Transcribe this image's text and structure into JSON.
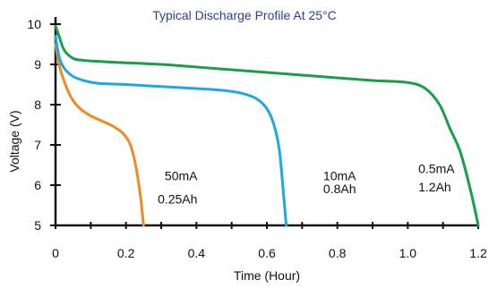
{
  "chart_data": {
    "type": "line",
    "title": "Typical Discharge Profile At 25°C",
    "xlabel": "Time (Hour)",
    "ylabel": "Voltage (V)",
    "xlim": [
      0,
      1.2
    ],
    "ylim": [
      5,
      10
    ],
    "x_ticks": [
      0,
      0.1,
      0.2,
      0.3,
      0.4,
      0.5,
      0.6,
      0.7,
      0.8,
      0.9,
      1.0,
      1.1,
      1.2
    ],
    "x_tick_labels": [
      {
        "x": 0,
        "label": "0"
      },
      {
        "x": 0.2,
        "label": "0.2"
      },
      {
        "x": 0.4,
        "label": "0.4"
      },
      {
        "x": 0.6,
        "label": "0.6"
      },
      {
        "x": 0.8,
        "label": "0.8"
      },
      {
        "x": 1.0,
        "label": "1.0"
      },
      {
        "x": 1.2,
        "label": "1.2"
      }
    ],
    "y_ticks": [
      5,
      6,
      7,
      8,
      9,
      10
    ],
    "y_tick_labels": [
      {
        "y": 5,
        "label": "5"
      },
      {
        "y": 6,
        "label": "6"
      },
      {
        "y": 7,
        "label": "7"
      },
      {
        "y": 8,
        "label": "8"
      },
      {
        "y": 9,
        "label": "9"
      },
      {
        "y": 10,
        "label": "10"
      }
    ],
    "grid": false,
    "series": [
      {
        "color": "#f08a24",
        "points": [
          [
            0,
            9.5
          ],
          [
            0.01,
            9.0
          ],
          [
            0.02,
            8.7
          ],
          [
            0.035,
            8.35
          ],
          [
            0.05,
            8.1
          ],
          [
            0.07,
            7.9
          ],
          [
            0.1,
            7.72
          ],
          [
            0.13,
            7.6
          ],
          [
            0.16,
            7.48
          ],
          [
            0.19,
            7.3
          ],
          [
            0.21,
            7.05
          ],
          [
            0.225,
            6.6
          ],
          [
            0.24,
            5.8
          ],
          [
            0.25,
            5.0
          ]
        ]
      },
      {
        "color": "#1ea7e1",
        "points": [
          [
            0,
            9.7
          ],
          [
            0.01,
            9.2
          ],
          [
            0.025,
            8.9
          ],
          [
            0.05,
            8.7
          ],
          [
            0.08,
            8.6
          ],
          [
            0.12,
            8.53
          ],
          [
            0.2,
            8.5
          ],
          [
            0.3,
            8.45
          ],
          [
            0.4,
            8.4
          ],
          [
            0.48,
            8.35
          ],
          [
            0.53,
            8.28
          ],
          [
            0.57,
            8.15
          ],
          [
            0.6,
            7.9
          ],
          [
            0.62,
            7.5
          ],
          [
            0.635,
            6.9
          ],
          [
            0.645,
            6.0
          ],
          [
            0.655,
            5.0
          ]
        ]
      },
      {
        "color": "#1a9e4b",
        "points": [
          [
            0,
            9.95
          ],
          [
            0.01,
            9.7
          ],
          [
            0.025,
            9.35
          ],
          [
            0.05,
            9.15
          ],
          [
            0.08,
            9.1
          ],
          [
            0.15,
            9.06
          ],
          [
            0.3,
            9.0
          ],
          [
            0.45,
            8.9
          ],
          [
            0.6,
            8.8
          ],
          [
            0.75,
            8.7
          ],
          [
            0.9,
            8.6
          ],
          [
            1.0,
            8.55
          ],
          [
            1.05,
            8.4
          ],
          [
            1.09,
            8.0
          ],
          [
            1.12,
            7.4
          ],
          [
            1.15,
            6.8
          ],
          [
            1.18,
            5.8
          ],
          [
            1.2,
            5.0
          ]
        ]
      }
    ],
    "annotations": [
      {
        "text": "50mA",
        "x": 0.31,
        "y": 6.12
      },
      {
        "text": "0.25Ah",
        "x": 0.29,
        "y": 5.55
      },
      {
        "text": "10mA",
        "x": 0.76,
        "y": 6.12
      },
      {
        "text": "0.8Ah",
        "x": 0.76,
        "y": 5.8
      },
      {
        "text": "0.5mA",
        "x": 1.03,
        "y": 6.3
      },
      {
        "text": "1.2Ah",
        "x": 1.03,
        "y": 5.85
      }
    ]
  }
}
